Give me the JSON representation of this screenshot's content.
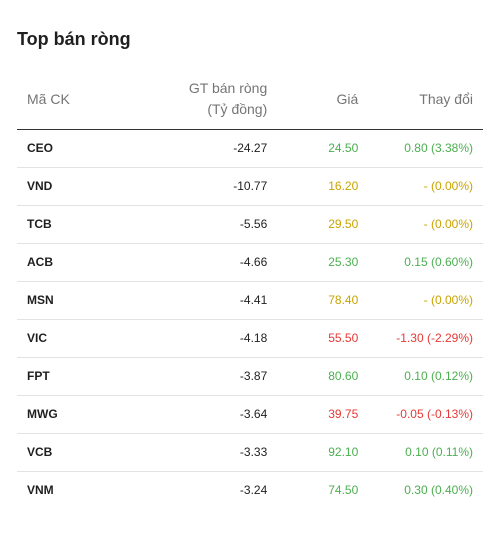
{
  "title": "Top bán ròng",
  "columns": {
    "code": "Mã CK",
    "value_line1": "GT bán ròng",
    "value_line2": "(Tỷ đồng)",
    "price": "Giá",
    "change": "Thay đổi"
  },
  "colors": {
    "up": "#4caf50",
    "reference": "#c9a400",
    "down": "#e53935"
  },
  "rows": [
    {
      "code": "CEO",
      "value": "-24.27",
      "price": "24.50",
      "change": "0.80 (3.38%)",
      "status": "up"
    },
    {
      "code": "VND",
      "value": "-10.77",
      "price": "16.20",
      "change": "- (0.00%)",
      "status": "ref"
    },
    {
      "code": "TCB",
      "value": "-5.56",
      "price": "29.50",
      "change": "- (0.00%)",
      "status": "ref"
    },
    {
      "code": "ACB",
      "value": "-4.66",
      "price": "25.30",
      "change": "0.15 (0.60%)",
      "status": "up"
    },
    {
      "code": "MSN",
      "value": "-4.41",
      "price": "78.40",
      "change": "- (0.00%)",
      "status": "ref"
    },
    {
      "code": "VIC",
      "value": "-4.18",
      "price": "55.50",
      "change": "-1.30 (-2.29%)",
      "status": "down"
    },
    {
      "code": "FPT",
      "value": "-3.87",
      "price": "80.60",
      "change": "0.10 (0.12%)",
      "status": "up"
    },
    {
      "code": "MWG",
      "value": "-3.64",
      "price": "39.75",
      "change": "-0.05 (-0.13%)",
      "status": "down"
    },
    {
      "code": "VCB",
      "value": "-3.33",
      "price": "92.10",
      "change": "0.10 (0.11%)",
      "status": "up"
    },
    {
      "code": "VNM",
      "value": "-3.24",
      "price": "74.50",
      "change": "0.30 (0.40%)",
      "status": "up"
    }
  ]
}
